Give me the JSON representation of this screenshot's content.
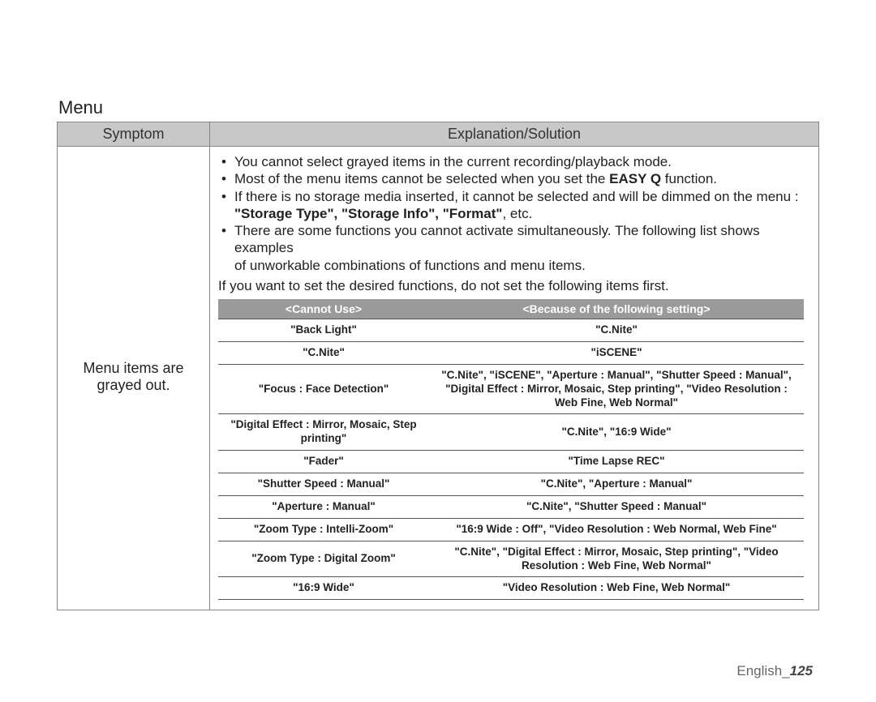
{
  "title": "Menu",
  "outer": {
    "headers": {
      "symptom": "Symptom",
      "explanation": "Explanation/Solution"
    },
    "symptom_text_line1": "Menu items are",
    "symptom_text_line2": "grayed out.",
    "bullets": {
      "b1": "You cannot select grayed items in the current recording/playback mode.",
      "b2_pre": "Most of the menu items cannot be selected when you set the ",
      "b2_bold": "EASY Q",
      "b2_post": " function.",
      "b3_line1": "If there is no storage media inserted, it cannot be selected and will be dimmed on the menu :",
      "b3_bold": "\"Storage Type\", \"Storage Info\", \"Format\"",
      "b3_etc": ", etc.",
      "b4_line1": "There are some functions you cannot activate simultaneously. The following list shows examples",
      "b4_line2": "of unworkable combinations of functions and menu items."
    },
    "after": "If you want to set the desired functions, do not set the following items first."
  },
  "inner": {
    "headers": {
      "c1": "<Cannot Use>",
      "c2": "<Because of the following setting>"
    },
    "rows": [
      {
        "c1": "\"Back Light\"",
        "c2": "\"C.Nite\""
      },
      {
        "c1": "\"C.Nite\"",
        "c2": "\"iSCENE\""
      },
      {
        "c1": "\"Focus : Face Detection\"",
        "c2": "\"C.Nite\", \"iSCENE\", \"Aperture : Manual\", \"Shutter Speed : Manual\", \"Digital Effect : Mirror, Mosaic, Step printing\", \"Video Resolution : Web Fine, Web Normal\""
      },
      {
        "c1": "\"Digital Effect : Mirror, Mosaic, Step printing\"",
        "c2": "\"C.Nite\", \"16:9 Wide\""
      },
      {
        "c1": "\"Fader\"",
        "c2": "\"Time Lapse REC\""
      },
      {
        "c1": "\"Shutter Speed : Manual\"",
        "c2": "\"C.Nite\", \"Aperture : Manual\""
      },
      {
        "c1": "\"Aperture : Manual\"",
        "c2": "\"C.Nite\", \"Shutter Speed : Manual\""
      },
      {
        "c1": "\"Zoom Type : Intelli-Zoom\"",
        "c2": "\"16:9 Wide : Off\", \"Video Resolution : Web Normal, Web Fine\""
      },
      {
        "c1": "\"Zoom Type : Digital Zoom\"",
        "c2": "\"C.Nite\", \"Digital Effect : Mirror, Mosaic, Step printing\", \"Video Resolution : Web Fine, Web Normal\""
      },
      {
        "c1": "\"16:9 Wide\"",
        "c2": "\"Video Resolution : Web Fine, Web Normal\""
      }
    ]
  },
  "footer": {
    "lang": "English",
    "sep": "_",
    "page": "125"
  },
  "colors": {
    "outer_header_bg": "#c8c8c8",
    "inner_header_bg": "#9a9a9a",
    "border": "#888888",
    "text": "#222222",
    "page_bg": "#ffffff"
  }
}
